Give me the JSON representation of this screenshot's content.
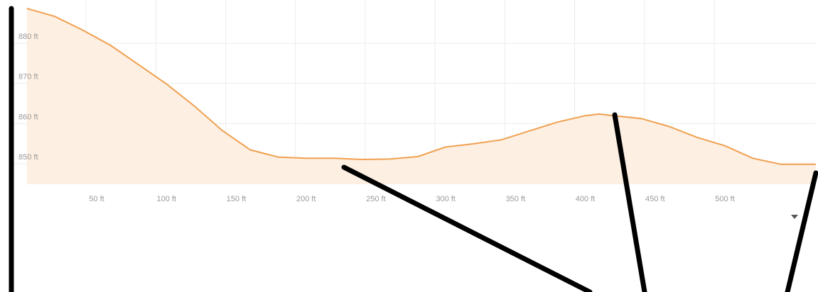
{
  "chart_data": {
    "type": "area",
    "title": "",
    "xlabel": "",
    "ylabel": "",
    "x_unit": "ft",
    "y_unit": "ft",
    "xlim": [
      0,
      570
    ],
    "ylim": [
      843,
      889
    ],
    "x_ticks": [
      50,
      100,
      150,
      200,
      250,
      300,
      350,
      400,
      450,
      500
    ],
    "x_tick_labels": [
      "50 ft",
      "100 ft",
      "150 ft",
      "200 ft",
      "250 ft",
      "300 ft",
      "350 ft",
      "400 ft",
      "450 ft",
      "500 ft"
    ],
    "y_ticks": [
      850,
      860,
      870,
      880
    ],
    "y_tick_labels": [
      "850 ft",
      "860 ft",
      "870 ft",
      "880 ft"
    ],
    "grid": true,
    "legend": "none",
    "series": [
      {
        "x": [
          0,
          20,
          40,
          60,
          80,
          100,
          120,
          140,
          160,
          180,
          200,
          210,
          220,
          240,
          260,
          280,
          300,
          320,
          340,
          360,
          380,
          400,
          410,
          420,
          440,
          460,
          480,
          500,
          520,
          540,
          560,
          570
        ],
        "y": [
          886.9,
          884.9,
          881.5,
          877.7,
          872.9,
          868.1,
          862.6,
          856.5,
          851.7,
          849.9,
          849.6,
          849.6,
          849.6,
          849.3,
          849.4,
          850.0,
          852.4,
          853.2,
          854.2,
          856.4,
          858.6,
          860.2,
          860.6,
          860.2,
          859.5,
          857.5,
          854.8,
          852.7,
          849.6,
          848.1,
          848.1,
          848.1
        ]
      }
    ],
    "colors": {
      "line": "#f0a050",
      "fill": "#fdefe2",
      "annotation": "#000000",
      "grid": "#ececec",
      "tick_text": "#9a9a9a"
    }
  }
}
